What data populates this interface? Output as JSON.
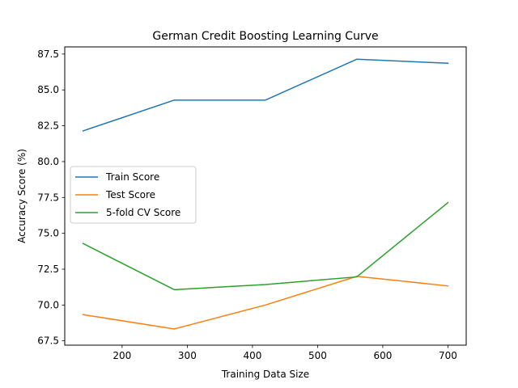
{
  "chart_data": {
    "type": "line",
    "title": "German Credit Boosting Learning Curve",
    "xlabel": "Training Data Size",
    "ylabel": "Accuracy Score (%)",
    "xlim": [
      112,
      728
    ],
    "ylim": [
      67.2,
      88.0
    ],
    "xticks": [
      200,
      300,
      400,
      500,
      600,
      700
    ],
    "yticks": [
      67.5,
      70.0,
      72.5,
      75.0,
      77.5,
      80.0,
      82.5,
      85.0,
      87.5
    ],
    "ytick_labels": [
      "67.5",
      "70.0",
      "72.5",
      "75.0",
      "77.5",
      "80.0",
      "82.5",
      "85.0",
      "87.5"
    ],
    "x": [
      140,
      280,
      420,
      560,
      700
    ],
    "series": [
      {
        "name": "Train Score",
        "color": "#1f77b4",
        "values": [
          82.14,
          84.29,
          84.29,
          87.14,
          86.86
        ]
      },
      {
        "name": "Test Score",
        "color": "#ff7f0e",
        "values": [
          69.33,
          68.33,
          70.0,
          72.0,
          71.33
        ]
      },
      {
        "name": "5-fold CV Score",
        "color": "#2ca02c",
        "values": [
          74.29,
          71.07,
          71.43,
          71.96,
          77.14
        ]
      }
    ],
    "grid": false,
    "legend_position": "center-left"
  }
}
